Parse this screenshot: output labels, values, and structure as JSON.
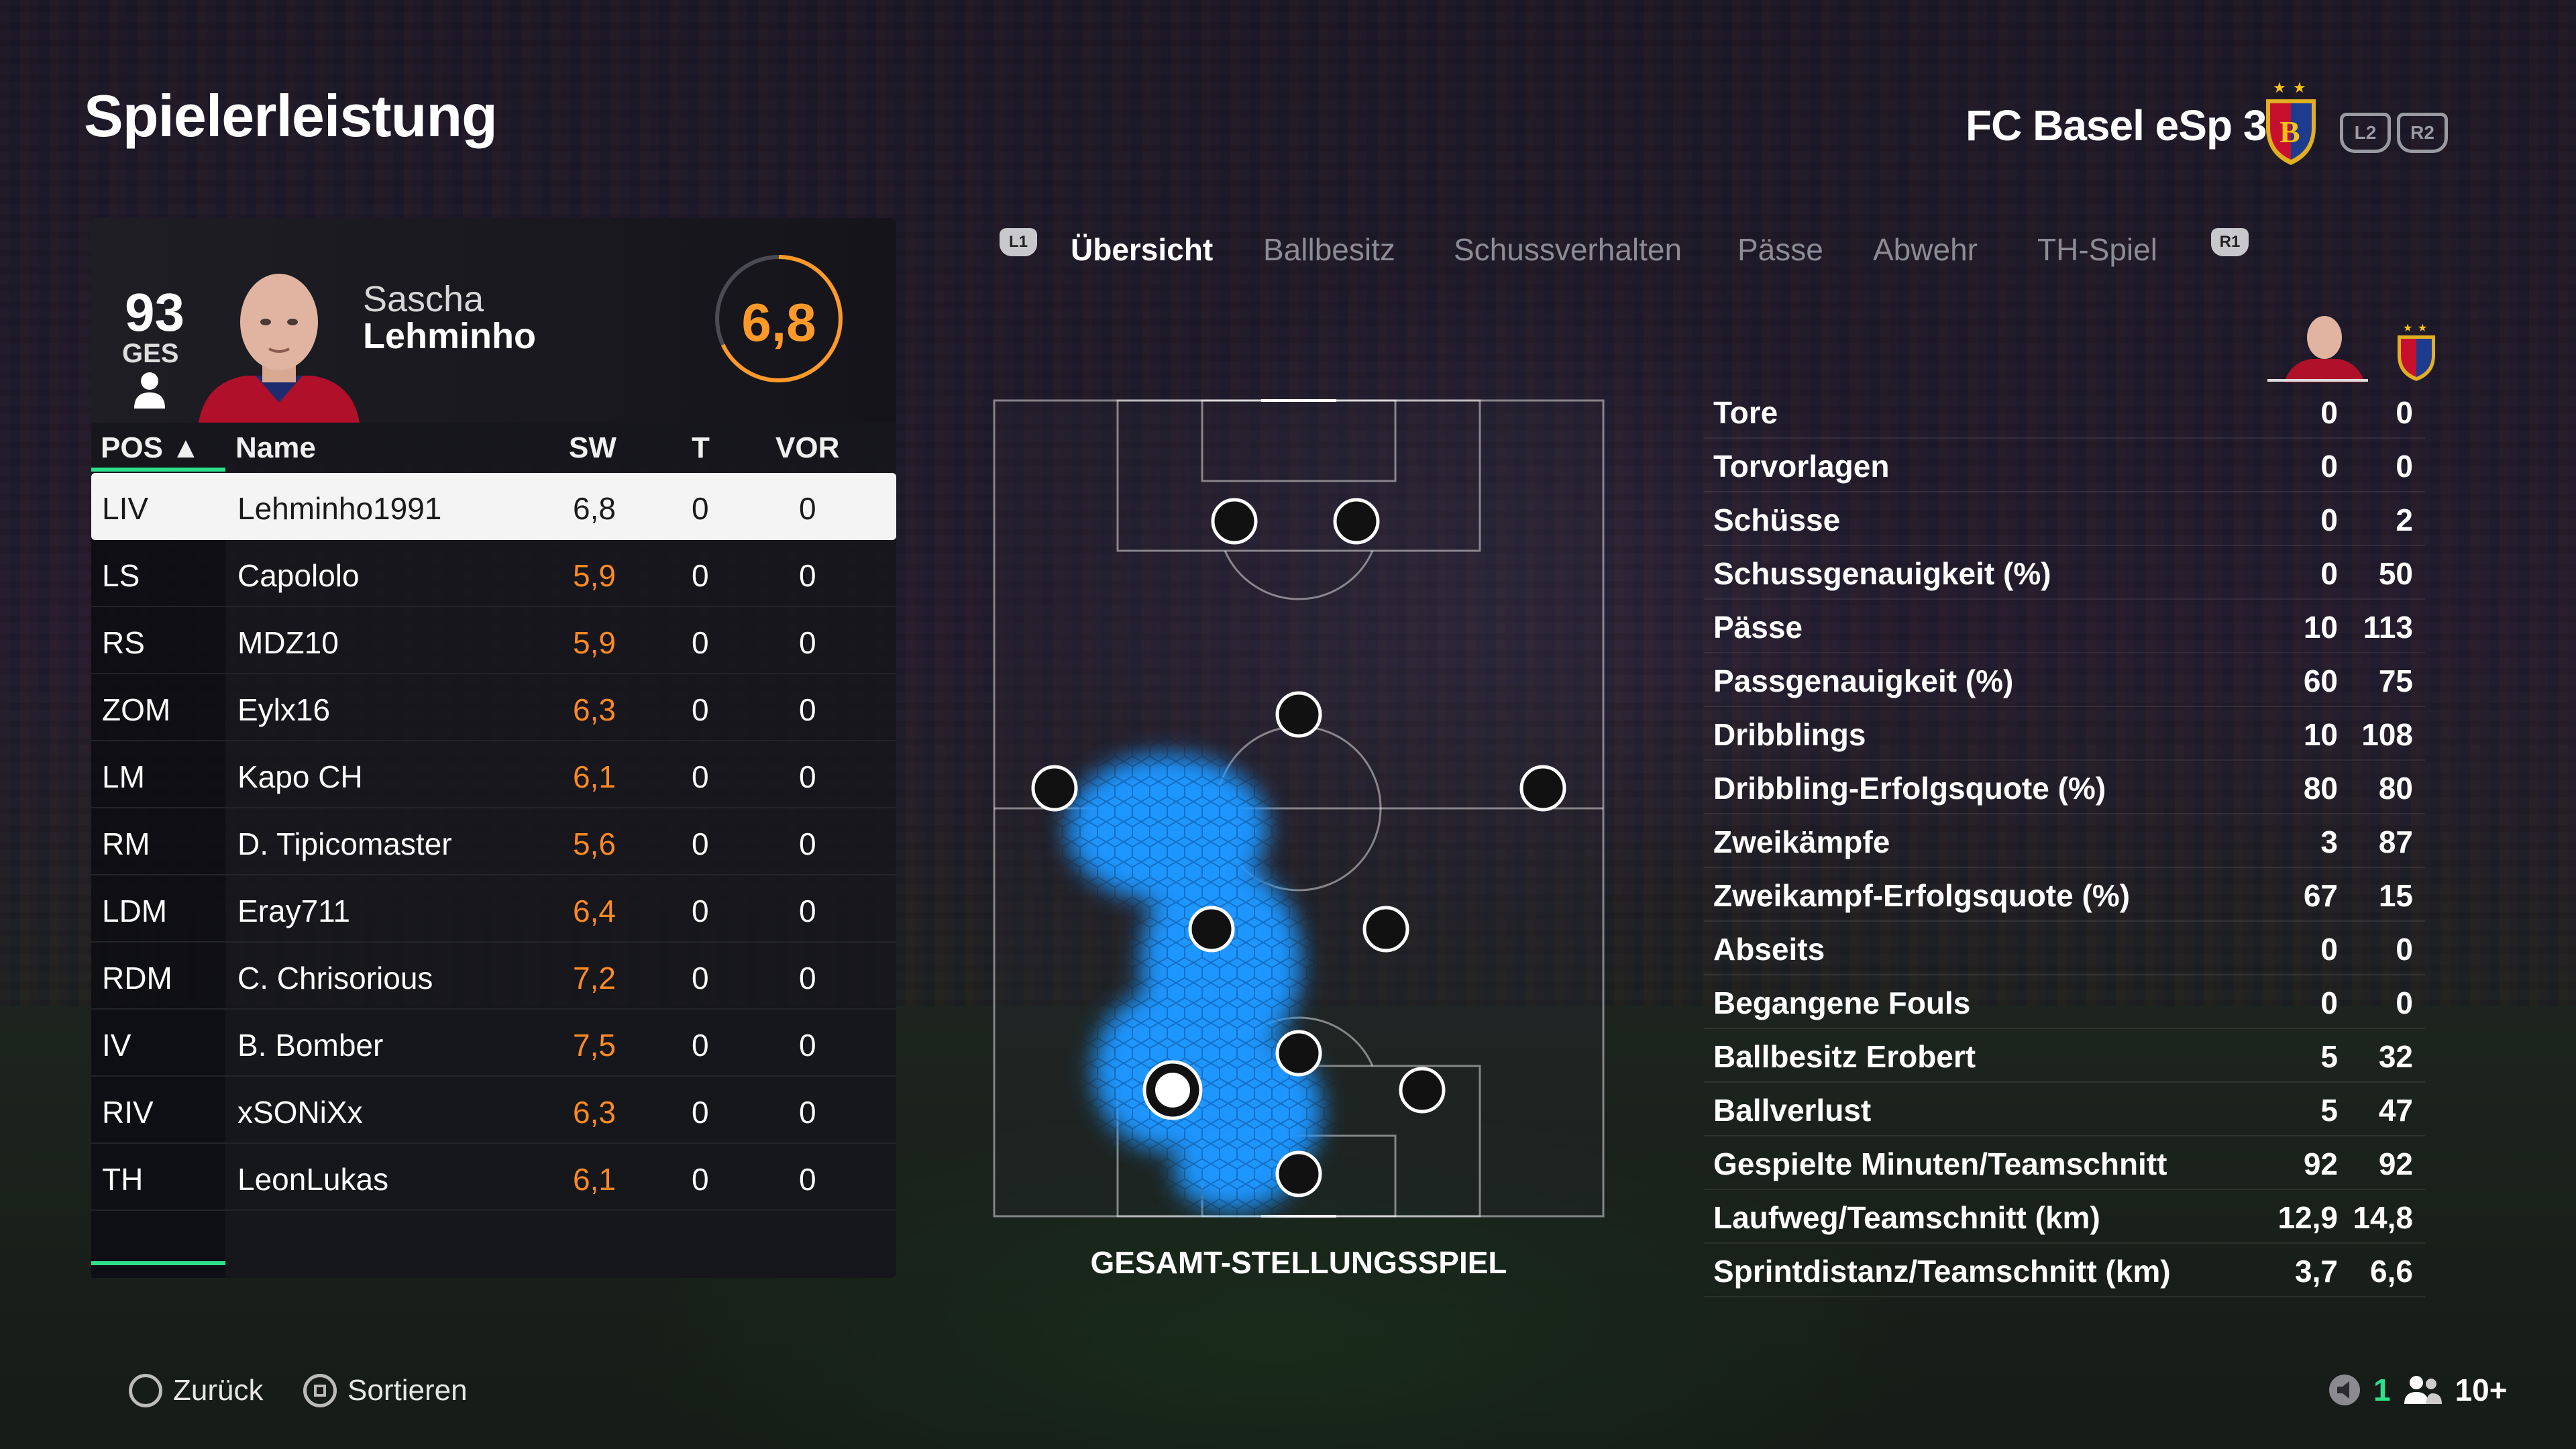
{
  "header": {
    "title": "Spielerleistung",
    "club": "FC Basel eSp 3",
    "trigger_left": "L2",
    "trigger_right": "R2"
  },
  "player": {
    "overall": "93",
    "overall_label": "GES",
    "first_name": "Sascha",
    "last_name": "Lehminho",
    "match_rating": "6,8",
    "match_rating_fraction": 0.68
  },
  "table": {
    "headers": {
      "pos": "POS ▲",
      "name": "Name",
      "sw": "SW",
      "t": "T",
      "vor": "VOR"
    },
    "rows": [
      {
        "pos": "LIV",
        "name": "Lehminho1991",
        "sw": "6,8",
        "t": "0",
        "vor": "0"
      },
      {
        "pos": "LS",
        "name": "Capololo",
        "sw": "5,9",
        "t": "0",
        "vor": "0"
      },
      {
        "pos": "RS",
        "name": "MDZ10",
        "sw": "5,9",
        "t": "0",
        "vor": "0"
      },
      {
        "pos": "ZOM",
        "name": "Eylx16",
        "sw": "6,3",
        "t": "0",
        "vor": "0"
      },
      {
        "pos": "LM",
        "name": "Kapo CH",
        "sw": "6,1",
        "t": "0",
        "vor": "0"
      },
      {
        "pos": "RM",
        "name": "D. Tipicomaster",
        "sw": "5,6",
        "t": "0",
        "vor": "0"
      },
      {
        "pos": "LDM",
        "name": "Eray711",
        "sw": "6,4",
        "t": "0",
        "vor": "0"
      },
      {
        "pos": "RDM",
        "name": "C. Chrisorious",
        "sw": "7,2",
        "t": "0",
        "vor": "0"
      },
      {
        "pos": "IV",
        "name": "B. Bomber",
        "sw": "7,5",
        "t": "0",
        "vor": "0"
      },
      {
        "pos": "RIV",
        "name": "xSONiXx",
        "sw": "6,3",
        "t": "0",
        "vor": "0"
      },
      {
        "pos": "TH",
        "name": "LeonLukas",
        "sw": "6,1",
        "t": "0",
        "vor": "0"
      }
    ]
  },
  "tabs": {
    "left_shoulder": "L1",
    "right_shoulder": "R1",
    "items": [
      "Übersicht",
      "Ballbesitz",
      "Schussverhalten",
      "Pässe",
      "Abwehr",
      "TH-Spiel"
    ],
    "active": "Übersicht"
  },
  "pitch": {
    "caption": "GESAMT-STELLUNGSSPIEL"
  },
  "stats": [
    {
      "label": "Tore",
      "player": "0",
      "team": "0"
    },
    {
      "label": "Torvorlagen",
      "player": "0",
      "team": "0"
    },
    {
      "label": "Schüsse",
      "player": "0",
      "team": "2"
    },
    {
      "label": "Schussgenauigkeit (%)",
      "player": "0",
      "team": "50"
    },
    {
      "label": "Pässe",
      "player": "10",
      "team": "113"
    },
    {
      "label": "Passgenauigkeit (%)",
      "player": "60",
      "team": "75"
    },
    {
      "label": "Dribblings",
      "player": "10",
      "team": "108"
    },
    {
      "label": "Dribbling-Erfolgsquote (%)",
      "player": "80",
      "team": "80"
    },
    {
      "label": "Zweikämpfe",
      "player": "3",
      "team": "87"
    },
    {
      "label": "Zweikampf-Erfolgsquote (%)",
      "player": "67",
      "team": "15"
    },
    {
      "label": "Abseits",
      "player": "0",
      "team": "0"
    },
    {
      "label": "Begangene Fouls",
      "player": "0",
      "team": "0"
    },
    {
      "label": "Ballbesitz Erobert",
      "player": "5",
      "team": "32"
    },
    {
      "label": "Ballverlust",
      "player": "5",
      "team": "47"
    },
    {
      "label": "Gespielte Minuten/Teamschnitt",
      "player": "92",
      "team": "92"
    },
    {
      "label": "Laufweg/Teamschnitt (km)",
      "player": "12,9",
      "team": "14,8"
    },
    {
      "label": "Sprintdistanz/Teamschnitt (km)",
      "player": "3,7",
      "team": "6,6"
    }
  ],
  "footer": {
    "back": "Zurück",
    "sort": "Sortieren",
    "count": "1",
    "players": "10+"
  },
  "colors": {
    "accent_green": "#2ee08a",
    "rating_orange": "#ff8a22",
    "heat_blue": "#1e96ff"
  }
}
